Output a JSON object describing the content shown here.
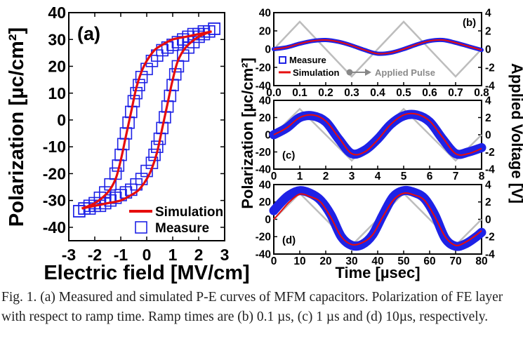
{
  "caption": "Fig. 1. (a) Measured and simulated P-E curves of MFM capacitors. Polarization of FE layer with respect to ramp time. Ramp times are (b) 0.1 µs, (c) 1 µs and (d) 10µs, respectively.",
  "colors": {
    "measure": "#1e22e6",
    "simulation": "#e60d0d",
    "pulse": "#bdbdbd"
  },
  "chart_data": [
    {
      "panel": "(a)",
      "type": "scatter",
      "xlabel": "Electric field [MV/cm]",
      "ylabel": "Polarization [µc/cm²]",
      "xlim": [
        -3,
        3
      ],
      "ylim": [
        -45,
        40
      ],
      "xticks": [
        -3,
        -2,
        -1,
        0,
        1,
        2,
        3
      ],
      "yticks": [
        -40,
        -30,
        -20,
        -10,
        0,
        10,
        20,
        30,
        40
      ],
      "legend_position": "bottom-right",
      "series": [
        {
          "name": "Simulation",
          "style": "line",
          "branches": [
            {
              "x": [
                -2.5,
                -2.0,
                -1.5,
                -1.2,
                -1.0,
                -0.8,
                -0.6,
                -0.4,
                -0.2,
                0.0,
                0.3,
                0.6,
                1.0,
                1.5,
                2.0,
                2.5
              ],
              "y": [
                -33,
                -31,
                -27,
                -22,
                -15,
                -6,
                3,
                12,
                18,
                22,
                26,
                28,
                30,
                31,
                32,
                33
              ]
            },
            {
              "x": [
                2.5,
                2.0,
                1.5,
                1.2,
                1.0,
                0.8,
                0.6,
                0.4,
                0.2,
                0.0,
                -0.3,
                -0.6,
                -1.0,
                -1.5,
                -2.0,
                -2.5
              ],
              "y": [
                33,
                31,
                27,
                22,
                15,
                6,
                -3,
                -12,
                -18,
                -22,
                -26,
                -28,
                -30,
                -31,
                -32,
                -33
              ]
            }
          ]
        },
        {
          "name": "Measure",
          "style": "open-square",
          "branches": [
            {
              "x": [
                -2.6,
                -2.4,
                -2.2,
                -2.0,
                -1.8,
                -1.6,
                -1.4,
                -1.2,
                -1.1,
                -1.0,
                -0.9,
                -0.8,
                -0.7,
                -0.6,
                -0.5,
                -0.4,
                -0.3,
                -0.2,
                0.0,
                0.2,
                0.4,
                0.6,
                0.8,
                1.0,
                1.2,
                1.4,
                1.6,
                1.8,
                2.0,
                2.2,
                2.4,
                2.6
              ],
              "y": [
                -34,
                -33,
                -32,
                -31,
                -29,
                -27,
                -24,
                -20,
                -17,
                -13,
                -9,
                -5,
                -1,
                3,
                7,
                10,
                13,
                16,
                19,
                22,
                24,
                26,
                27,
                28,
                29,
                30,
                31,
                32,
                32,
                33,
                33,
                34
              ]
            },
            {
              "x": [
                2.6,
                2.4,
                2.2,
                2.0,
                1.8,
                1.6,
                1.4,
                1.2,
                1.1,
                1.0,
                0.9,
                0.8,
                0.7,
                0.6,
                0.5,
                0.4,
                0.3,
                0.2,
                0.0,
                -0.2,
                -0.4,
                -0.6,
                -0.8,
                -1.0,
                -1.2,
                -1.4,
                -1.6,
                -1.8,
                -2.0,
                -2.2,
                -2.4,
                -2.6
              ],
              "y": [
                34,
                33,
                32,
                31,
                29,
                27,
                24,
                20,
                17,
                13,
                9,
                5,
                1,
                -3,
                -7,
                -10,
                -13,
                -16,
                -19,
                -22,
                -24,
                -26,
                -27,
                -28,
                -29,
                -30,
                -31,
                -32,
                -32,
                -33,
                -33,
                -34
              ]
            }
          ]
        }
      ]
    },
    {
      "panel": "(b)",
      "type": "line",
      "xlim": [
        0,
        0.8
      ],
      "ylim": [
        -40,
        40
      ],
      "y2lim": [
        -4,
        4
      ],
      "xticks": [
        0.0,
        0.1,
        0.2,
        0.3,
        0.4,
        0.5,
        0.6,
        0.7,
        0.8
      ],
      "xtick_labels": [
        "0.0",
        "0.1",
        "0.2",
        "0.3",
        "0.4",
        "0.5",
        "0.6",
        "0.7",
        "0.8"
      ],
      "yticks": [
        -40,
        -20,
        0,
        20,
        40
      ],
      "y2ticks": [
        -4,
        -2,
        0,
        2,
        4
      ],
      "legend_position": "bottom-left",
      "series": [
        {
          "name": "Measure",
          "style": "band",
          "band_width": 6,
          "x": [
            0,
            0.05,
            0.1,
            0.15,
            0.2,
            0.25,
            0.3,
            0.35,
            0.4,
            0.45,
            0.5,
            0.55,
            0.6,
            0.65,
            0.7,
            0.75,
            0.8
          ],
          "y": [
            0,
            2,
            6,
            9,
            10,
            8,
            4,
            -1,
            -5,
            -4,
            0,
            5,
            9,
            10,
            7,
            3,
            -1
          ]
        },
        {
          "name": "Simulation",
          "style": "line",
          "x": [
            0,
            0.05,
            0.1,
            0.15,
            0.2,
            0.25,
            0.3,
            0.35,
            0.4,
            0.45,
            0.5,
            0.55,
            0.6,
            0.65,
            0.7,
            0.75,
            0.8
          ],
          "y": [
            0,
            2,
            6,
            9,
            10,
            8,
            4,
            -1,
            -5,
            -4,
            0,
            5,
            9,
            10,
            7,
            3,
            -1
          ]
        },
        {
          "name": "Applied Pulse",
          "style": "pulse",
          "axis": "right",
          "x": [
            0,
            0.1,
            0.3,
            0.5,
            0.7,
            0.8
          ],
          "y": [
            0,
            3,
            -3,
            3,
            -3,
            0
          ]
        }
      ]
    },
    {
      "panel": "(c)",
      "type": "line",
      "xlim": [
        0,
        8
      ],
      "ylim": [
        -40,
        40
      ],
      "y2lim": [
        -4,
        4
      ],
      "xticks": [
        0,
        1,
        2,
        3,
        4,
        5,
        6,
        7,
        8
      ],
      "xtick_labels": [
        "0",
        "1",
        "2",
        "3",
        "4",
        "5",
        "6",
        "7",
        "8"
      ],
      "yticks": [
        -40,
        -20,
        0,
        20,
        40
      ],
      "y2ticks": [
        -4,
        -2,
        0,
        2,
        4
      ],
      "series": [
        {
          "name": "Measure",
          "style": "band",
          "band_width": 13,
          "x": [
            0,
            0.5,
            1,
            1.5,
            2,
            2.5,
            3,
            3.5,
            4,
            4.5,
            5,
            5.5,
            6,
            6.5,
            7,
            7.5,
            8
          ],
          "y": [
            0,
            8,
            20,
            22,
            15,
            -5,
            -22,
            -18,
            -5,
            12,
            22,
            23,
            15,
            -5,
            -22,
            -20,
            -15
          ]
        },
        {
          "name": "Simulation",
          "style": "line",
          "x": [
            0,
            0.5,
            1,
            1.5,
            2,
            2.5,
            3,
            3.5,
            4,
            4.5,
            5,
            5.5,
            6,
            6.5,
            7,
            7.5,
            8
          ],
          "y": [
            0,
            8,
            20,
            23,
            16,
            -3,
            -22,
            -20,
            -6,
            12,
            23,
            24,
            16,
            -3,
            -22,
            -22,
            -16
          ]
        },
        {
          "name": "Applied Pulse",
          "style": "pulse",
          "axis": "right",
          "x": [
            0,
            1,
            3,
            5,
            7,
            8
          ],
          "y": [
            0,
            3,
            -3,
            3,
            -3,
            0
          ]
        }
      ]
    },
    {
      "panel": "(d)",
      "type": "line",
      "xlabel": "Time [µsec]",
      "xlim": [
        0,
        80
      ],
      "ylim": [
        -40,
        40
      ],
      "y2lim": [
        -4,
        4
      ],
      "xticks": [
        0,
        10,
        20,
        30,
        40,
        50,
        60,
        70,
        80
      ],
      "xtick_labels": [
        "0",
        "10",
        "20",
        "30",
        "40",
        "50",
        "60",
        "70",
        "80"
      ],
      "yticks": [
        -40,
        -20,
        0,
        20,
        40
      ],
      "y2ticks": [
        -4,
        -2,
        0,
        2,
        4
      ],
      "series": [
        {
          "name": "Measure",
          "style": "band",
          "band_width": 13,
          "x": [
            0,
            3,
            6,
            10,
            14,
            18,
            22,
            26,
            30,
            34,
            38,
            42,
            46,
            50,
            54,
            58,
            62,
            66,
            70,
            74,
            78,
            80
          ],
          "y": [
            10,
            20,
            28,
            33,
            30,
            22,
            5,
            -20,
            -30,
            -29,
            -18,
            5,
            26,
            33,
            31,
            24,
            5,
            -22,
            -31,
            -28,
            -20,
            -15
          ]
        },
        {
          "name": "Simulation",
          "style": "line",
          "x": [
            0,
            3,
            6,
            10,
            14,
            18,
            22,
            26,
            30,
            34,
            38,
            42,
            46,
            50,
            54,
            58,
            62,
            66,
            70,
            74,
            78,
            80
          ],
          "y": [
            0,
            10,
            20,
            29,
            26,
            20,
            2,
            -20,
            -29,
            -27,
            -18,
            3,
            22,
            30,
            28,
            22,
            3,
            -20,
            -30,
            -26,
            -18,
            -13
          ]
        },
        {
          "name": "Applied Pulse",
          "style": "pulse",
          "axis": "right",
          "x": [
            0,
            10,
            30,
            50,
            70,
            80
          ],
          "y": [
            0,
            3,
            -3,
            3,
            -3,
            0
          ]
        }
      ]
    }
  ],
  "shared_labels": {
    "ylabel_right_panels": "Polarization [µc/cm²]",
    "y2label": "Applied Voltage [V]"
  }
}
